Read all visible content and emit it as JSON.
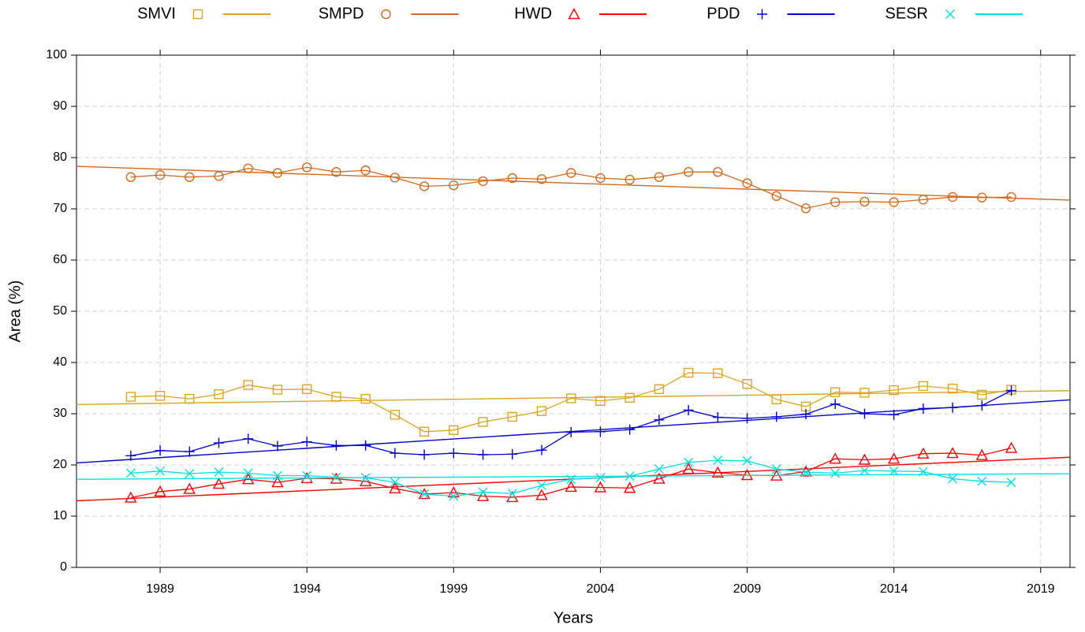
{
  "chart_data": {
    "type": "line",
    "x_label": "Years",
    "y_label": "Area (%)",
    "x": [
      1988,
      1989,
      1990,
      1991,
      1992,
      1993,
      1994,
      1995,
      1996,
      1997,
      1998,
      1999,
      2000,
      2001,
      2002,
      2003,
      2004,
      2005,
      2006,
      2007,
      2008,
      2009,
      2010,
      2011,
      2012,
      2013,
      2014,
      2015,
      2016,
      2017,
      2018
    ],
    "xlim": [
      1986.15,
      2020.0
    ],
    "xticks": [
      1989,
      1994,
      1999,
      2004,
      2009,
      2014,
      2019
    ],
    "ylim": [
      0,
      100
    ],
    "yticks": [
      0,
      10,
      20,
      30,
      40,
      50,
      60,
      70,
      80,
      90,
      100
    ],
    "grid": true,
    "legend": "top",
    "series": [
      {
        "name": "SMVI",
        "color": "#daa520",
        "marker": "square",
        "values": [
          33.3,
          33.5,
          32.9,
          33.8,
          35.6,
          34.7,
          34.8,
          33.3,
          32.9,
          29.8,
          26.5,
          26.8,
          28.4,
          29.4,
          30.5,
          33.0,
          32.5,
          33.1,
          34.8,
          38.0,
          37.9,
          35.8,
          32.8,
          31.4,
          34.2,
          34.1,
          34.6,
          35.4,
          34.9,
          33.7,
          34.7
        ],
        "trend": [
          31.8,
          34.5
        ]
      },
      {
        "name": "SMPD",
        "color": "#d2691e",
        "marker": "circle",
        "values": [
          76.2,
          76.6,
          76.2,
          76.4,
          77.9,
          77.0,
          78.1,
          77.2,
          77.5,
          76.1,
          74.4,
          74.6,
          75.4,
          76.0,
          75.8,
          77.0,
          76.0,
          75.7,
          76.2,
          77.2,
          77.2,
          75.0,
          72.5,
          70.1,
          71.3,
          71.4,
          71.3,
          71.8,
          72.3,
          72.2,
          72.3
        ],
        "trend": [
          78.3,
          71.7
        ]
      },
      {
        "name": "HWD",
        "color": "#ff0000",
        "marker": "triangle",
        "values": [
          13.6,
          14.8,
          15.3,
          16.3,
          17.2,
          16.6,
          17.4,
          17.3,
          16.8,
          15.4,
          14.3,
          14.6,
          13.9,
          13.7,
          14.1,
          15.7,
          15.6,
          15.5,
          17.3,
          19.2,
          18.5,
          18.0,
          17.9,
          18.7,
          21.2,
          21.0,
          21.2,
          22.2,
          22.3,
          21.9,
          23.3
        ],
        "trend": [
          13.0,
          21.5
        ]
      },
      {
        "name": "PDD",
        "color": "#0000cd",
        "marker": "plus",
        "values": [
          21.8,
          22.8,
          22.6,
          24.3,
          25.1,
          23.7,
          24.5,
          23.8,
          23.8,
          22.3,
          22.0,
          22.3,
          22.0,
          22.1,
          22.9,
          26.4,
          26.5,
          26.9,
          28.8,
          30.7,
          29.3,
          29.1,
          29.4,
          29.9,
          31.9,
          30.0,
          29.8,
          31.0,
          31.2,
          31.6,
          34.5
        ],
        "trend": [
          20.4,
          32.7
        ]
      },
      {
        "name": "SESR",
        "color": "#00e0e0",
        "marker": "cross",
        "values": [
          18.4,
          18.8,
          18.3,
          18.6,
          18.4,
          17.9,
          17.9,
          17.6,
          17.5,
          16.6,
          14.3,
          13.9,
          14.7,
          14.4,
          16.0,
          17.2,
          17.5,
          17.8,
          19.2,
          20.5,
          20.9,
          20.8,
          19.2,
          18.6,
          18.4,
          18.9,
          18.8,
          18.7,
          17.3,
          16.8,
          16.6
        ],
        "trend": [
          17.2,
          18.3
        ]
      }
    ]
  }
}
